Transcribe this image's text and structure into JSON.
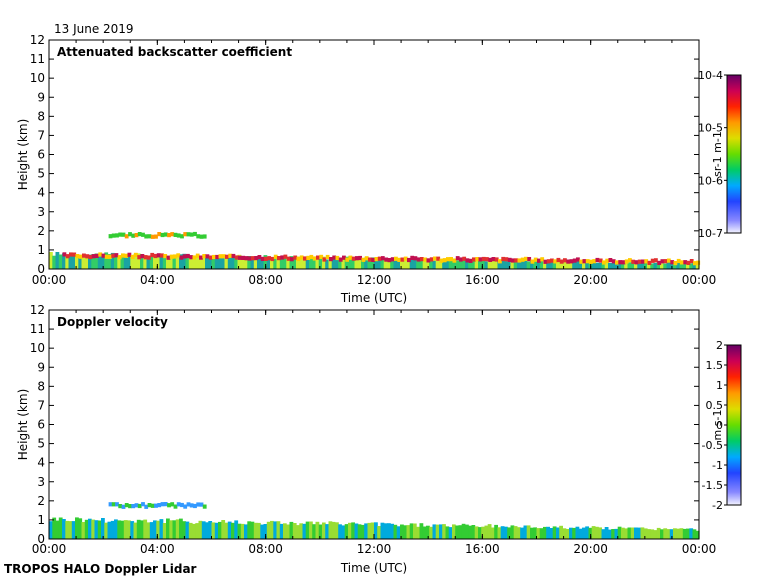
{
  "date": "13 June 2019",
  "footer": "TROPOS HALO Doppler Lidar",
  "chart_data": [
    {
      "type": "heatmap",
      "title": "Attenuated backscatter coefficient",
      "xlabel": "Time (UTC)",
      "ylabel": "Height (km)",
      "x_ticks": [
        "00:00",
        "04:00",
        "08:00",
        "12:00",
        "16:00",
        "20:00",
        "00:00"
      ],
      "y_ticks": [
        "0",
        "1",
        "2",
        "3",
        "4",
        "5",
        "6",
        "7",
        "8",
        "9",
        "10",
        "11",
        "12"
      ],
      "xlim": [
        0,
        24
      ],
      "ylim": [
        0,
        12
      ],
      "colorbar": {
        "label": "sr-1 m-1",
        "scale": "log",
        "range": [
          1e-07,
          0.0001
        ],
        "ticks": [
          "10-7",
          "10-6",
          "10-5",
          "10-4"
        ]
      },
      "features": [
        {
          "name": "boundary-layer-echo",
          "time_range": [
            0,
            24
          ],
          "top_km": [
            0.8,
            0.3
          ],
          "colors": [
            "#1aa3a3",
            "#33cc66",
            "#ccee33"
          ]
        },
        {
          "name": "aerosol-layer-top",
          "time_range": [
            0.5,
            24
          ],
          "height_km": [
            0.7,
            0.35
          ],
          "colors": [
            "#c01050",
            "#e03030",
            "#ffcc00"
          ]
        },
        {
          "name": "elevated-layer",
          "time_range": [
            2.2,
            5.7
          ],
          "height_km": 1.75,
          "colors": [
            "#ff9900",
            "#33cc33"
          ]
        }
      ]
    },
    {
      "type": "heatmap",
      "title": "Doppler velocity",
      "xlabel": "Time (UTC)",
      "ylabel": "Height (km)",
      "x_ticks": [
        "00:00",
        "04:00",
        "08:00",
        "12:00",
        "16:00",
        "20:00",
        "00:00"
      ],
      "y_ticks": [
        "0",
        "1",
        "2",
        "3",
        "4",
        "5",
        "6",
        "7",
        "8",
        "9",
        "10",
        "11",
        "12"
      ],
      "xlim": [
        0,
        24
      ],
      "ylim": [
        0,
        12
      ],
      "colorbar": {
        "label": "m s-1",
        "scale": "linear",
        "range": [
          -2,
          2
        ],
        "ticks": [
          "2",
          "1.5",
          "1",
          "0.5",
          "0",
          "-0.5",
          "-1",
          "-1.5",
          "-2"
        ]
      },
      "features": [
        {
          "name": "boundary-layer-velocity",
          "time_range": [
            0,
            24
          ],
          "top_km": [
            1.05,
            0.5
          ],
          "colors": [
            "#33cc33",
            "#99dd33",
            "#00aadd"
          ]
        },
        {
          "name": "elevated-layer",
          "time_range": [
            2.2,
            5.7
          ],
          "height_km": 1.75,
          "colors": [
            "#33cc33",
            "#3399ff"
          ]
        }
      ]
    }
  ]
}
